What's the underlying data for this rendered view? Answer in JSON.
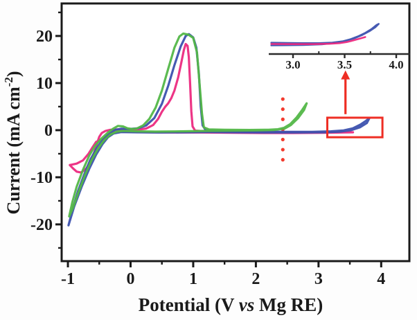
{
  "figure": {
    "background": "#fdfdfd",
    "accent_red": "#ee2e24"
  },
  "chart_data": {
    "type": "line",
    "title": "",
    "xlabel": "Potential (V vs Mg RE)",
    "xlabel_parts": [
      {
        "text": "Potential (V ",
        "italic": false
      },
      {
        "text": "vs",
        "italic": true
      },
      {
        "text": " Mg RE)",
        "italic": false
      }
    ],
    "ylabel": "Current (mA cm-2)",
    "ylabel_parts": {
      "main": "Current (mA cm",
      "sup": "-2",
      "close": ")"
    },
    "xlim": [
      -1.1,
      4.45
    ],
    "ylim": [
      -27.8,
      26.9
    ],
    "grid": false,
    "legend": "none",
    "x_ticks": [
      -1,
      0,
      1,
      2,
      3,
      4
    ],
    "x_tick_labels": [
      "-1",
      "0",
      "1",
      "2",
      "3",
      "4"
    ],
    "x_minor_ticks": [
      -0.5,
      0.5,
      1.5,
      2.5,
      3.5
    ],
    "y_ticks": [
      20,
      10,
      0,
      -10,
      -20
    ],
    "y_tick_labels": [
      "20",
      "10",
      "0",
      "-10",
      "-20"
    ],
    "y_minor_ticks": [
      25,
      15,
      5,
      -5,
      -15,
      -25
    ],
    "series": [
      {
        "name": "magenta-cv",
        "color": "#ec2a80",
        "points": [
          [
            -0.97,
            -7.4
          ],
          [
            -0.92,
            -8.1
          ],
          [
            -0.86,
            -8.8
          ],
          [
            -0.79,
            -9.0
          ],
          [
            -0.71,
            -8.2
          ],
          [
            -0.65,
            -6.9
          ],
          [
            -0.6,
            -5.5
          ],
          [
            -0.56,
            -4.0
          ],
          [
            -0.53,
            -2.6
          ],
          [
            -0.5,
            -1.4
          ],
          [
            -0.46,
            -0.6
          ],
          [
            -0.4,
            -0.15
          ],
          [
            -0.32,
            0.1
          ],
          [
            -0.2,
            0.15
          ],
          [
            -0.05,
            0.1
          ],
          [
            0.1,
            0.1
          ],
          [
            0.25,
            0.35
          ],
          [
            0.36,
            1.1
          ],
          [
            0.44,
            2.4
          ],
          [
            0.5,
            3.9
          ],
          [
            0.55,
            4.9
          ],
          [
            0.6,
            5.7
          ],
          [
            0.65,
            6.8
          ],
          [
            0.7,
            8.4
          ],
          [
            0.76,
            11.2
          ],
          [
            0.81,
            14.4
          ],
          [
            0.85,
            17.0
          ],
          [
            0.88,
            18.3
          ],
          [
            0.91,
            17.9
          ],
          [
            0.93,
            15.5
          ],
          [
            0.95,
            10.0
          ],
          [
            0.97,
            4.0
          ],
          [
            0.99,
            0.8
          ],
          [
            1.03,
            -0.1
          ],
          [
            1.2,
            -0.25
          ],
          [
            1.6,
            -0.35
          ],
          [
            2.1,
            -0.45
          ],
          [
            2.6,
            -0.5
          ],
          [
            3.1,
            -0.5
          ],
          [
            3.55,
            -0.45
          ],
          [
            3.1,
            -0.55
          ],
          [
            2.6,
            -0.6
          ],
          [
            2.1,
            -0.6
          ],
          [
            1.6,
            -0.55
          ],
          [
            1.15,
            -0.5
          ],
          [
            0.7,
            -0.5
          ],
          [
            0.3,
            -0.45
          ],
          [
            0.0,
            -0.4
          ],
          [
            -0.2,
            -0.35
          ],
          [
            -0.3,
            -0.5
          ],
          [
            -0.36,
            -0.9
          ],
          [
            -0.41,
            -1.6
          ],
          [
            -0.45,
            -2.0
          ],
          [
            -0.5,
            -2.2
          ],
          [
            -0.55,
            -2.5
          ],
          [
            -0.6,
            -3.5
          ],
          [
            -0.67,
            -5.0
          ],
          [
            -0.76,
            -6.4
          ],
          [
            -0.86,
            -7.1
          ],
          [
            -0.97,
            -7.4
          ]
        ]
      },
      {
        "name": "blue-cv",
        "color": "#3c51ae",
        "points": [
          [
            -0.99,
            -20.2
          ],
          [
            -0.92,
            -16.6
          ],
          [
            -0.84,
            -13.0
          ],
          [
            -0.74,
            -9.4
          ],
          [
            -0.64,
            -6.2
          ],
          [
            -0.54,
            -3.8
          ],
          [
            -0.45,
            -2.1
          ],
          [
            -0.37,
            -1.0
          ],
          [
            -0.3,
            -0.3
          ],
          [
            -0.24,
            0.1
          ],
          [
            -0.15,
            0.3
          ],
          [
            -0.02,
            0.25
          ],
          [
            0.12,
            0.4
          ],
          [
            0.25,
            1.0
          ],
          [
            0.38,
            2.6
          ],
          [
            0.5,
            5.6
          ],
          [
            0.6,
            9.4
          ],
          [
            0.7,
            13.8
          ],
          [
            0.8,
            17.8
          ],
          [
            0.88,
            20.0
          ],
          [
            0.93,
            20.4
          ],
          [
            1.0,
            19.7
          ],
          [
            1.05,
            17.5
          ],
          [
            1.09,
            12.0
          ],
          [
            1.12,
            5.0
          ],
          [
            1.15,
            1.0
          ],
          [
            1.2,
            0.0
          ],
          [
            1.5,
            -0.2
          ],
          [
            2.0,
            -0.3
          ],
          [
            2.5,
            -0.35
          ],
          [
            2.9,
            -0.35
          ],
          [
            3.2,
            -0.25
          ],
          [
            3.4,
            -0.05
          ],
          [
            3.55,
            0.4
          ],
          [
            3.67,
            1.2
          ],
          [
            3.76,
            2.0
          ],
          [
            3.81,
            2.5
          ],
          [
            3.77,
            1.5
          ],
          [
            3.66,
            0.6
          ],
          [
            3.52,
            0.0
          ],
          [
            3.35,
            -0.3
          ],
          [
            3.1,
            -0.45
          ],
          [
            2.7,
            -0.5
          ],
          [
            2.2,
            -0.5
          ],
          [
            1.7,
            -0.45
          ],
          [
            1.25,
            -0.4
          ],
          [
            0.85,
            -0.45
          ],
          [
            0.45,
            -0.5
          ],
          [
            0.1,
            -0.45
          ],
          [
            -0.15,
            -0.4
          ],
          [
            -0.27,
            -0.7
          ],
          [
            -0.36,
            -1.5
          ],
          [
            -0.45,
            -3.0
          ],
          [
            -0.55,
            -5.2
          ],
          [
            -0.66,
            -8.2
          ],
          [
            -0.78,
            -12.0
          ],
          [
            -0.9,
            -16.2
          ],
          [
            -0.99,
            -20.2
          ]
        ]
      },
      {
        "name": "green-cv",
        "color": "#53b748",
        "points": [
          [
            -0.98,
            -18.3
          ],
          [
            -0.93,
            -15.3
          ],
          [
            -0.86,
            -12.0
          ],
          [
            -0.76,
            -8.4
          ],
          [
            -0.66,
            -5.4
          ],
          [
            -0.56,
            -3.2
          ],
          [
            -0.46,
            -1.7
          ],
          [
            -0.36,
            -0.5
          ],
          [
            -0.28,
            0.3
          ],
          [
            -0.2,
            0.9
          ],
          [
            -0.12,
            0.8
          ],
          [
            -0.05,
            0.4
          ],
          [
            0.02,
            0.25
          ],
          [
            0.1,
            0.35
          ],
          [
            0.2,
            1.0
          ],
          [
            0.3,
            2.4
          ],
          [
            0.4,
            4.8
          ],
          [
            0.5,
            8.4
          ],
          [
            0.6,
            13.0
          ],
          [
            0.7,
            17.5
          ],
          [
            0.78,
            19.9
          ],
          [
            0.84,
            20.5
          ],
          [
            0.92,
            20.3
          ],
          [
            1.0,
            19.6
          ],
          [
            1.06,
            16.5
          ],
          [
            1.1,
            10.0
          ],
          [
            1.14,
            3.5
          ],
          [
            1.17,
            0.6
          ],
          [
            1.25,
            0.15
          ],
          [
            1.5,
            0.1
          ],
          [
            1.9,
            0.05
          ],
          [
            2.2,
            0.1
          ],
          [
            2.35,
            0.2
          ],
          [
            2.45,
            0.5
          ],
          [
            2.55,
            1.3
          ],
          [
            2.65,
            2.7
          ],
          [
            2.74,
            4.3
          ],
          [
            2.81,
            5.7
          ],
          [
            2.77,
            4.3
          ],
          [
            2.67,
            2.5
          ],
          [
            2.56,
            1.1
          ],
          [
            2.46,
            0.35
          ],
          [
            2.3,
            0.05
          ],
          [
            2.0,
            -0.05
          ],
          [
            1.6,
            -0.1
          ],
          [
            1.2,
            -0.15
          ],
          [
            0.8,
            -0.25
          ],
          [
            0.4,
            -0.3
          ],
          [
            0.1,
            -0.25
          ],
          [
            -0.12,
            -0.15
          ],
          [
            -0.22,
            -0.3
          ],
          [
            -0.32,
            -0.9
          ],
          [
            -0.42,
            -2.1
          ],
          [
            -0.52,
            -3.9
          ],
          [
            -0.62,
            -6.3
          ],
          [
            -0.72,
            -9.3
          ],
          [
            -0.82,
            -12.8
          ],
          [
            -0.92,
            -16.5
          ],
          [
            -0.98,
            -18.3
          ]
        ]
      }
    ],
    "annotations": {
      "vertical_dotted_line": {
        "x": 2.43,
        "y_from": -6.3,
        "y_to": 6.6,
        "color": "#f23b2e"
      },
      "highlight_box": {
        "x1": 3.14,
        "y1": -1.5,
        "x2": 4.02,
        "y2": 2.65,
        "color": "#ee2e24"
      },
      "arrow": {
        "x": 3.43,
        "y_from": 3.4,
        "y_to": 12.7,
        "color": "#ee2e24"
      }
    },
    "inset": {
      "xlim": [
        2.765,
        4.134
      ],
      "ylim_au": [
        -1.45,
        3.55
      ],
      "x_ticks": [
        3.0,
        3.5,
        4.0
      ],
      "x_tick_labels": [
        "3.0",
        "3.5",
        "4.0"
      ],
      "x_minor_ticks": [
        3.25,
        3.75
      ],
      "series": [
        {
          "name": "blue-cv-inset",
          "color": "#3c51ae",
          "points": [
            [
              2.79,
              0.18
            ],
            [
              2.95,
              0.15
            ],
            [
              3.1,
              0.12
            ],
            [
              3.25,
              0.12
            ],
            [
              3.38,
              0.2
            ],
            [
              3.48,
              0.38
            ],
            [
              3.56,
              0.7
            ],
            [
              3.63,
              1.1
            ],
            [
              3.7,
              1.6
            ],
            [
              3.76,
              2.15
            ],
            [
              3.81,
              2.75
            ],
            [
              3.83,
              2.9
            ],
            [
              3.8,
              2.45
            ],
            [
              3.74,
              1.85
            ],
            [
              3.67,
              1.3
            ],
            [
              3.59,
              0.8
            ],
            [
              3.5,
              0.42
            ],
            [
              3.4,
              0.15
            ],
            [
              3.28,
              -0.05
            ],
            [
              3.1,
              -0.15
            ],
            [
              2.9,
              -0.18
            ],
            [
              2.79,
              -0.2
            ]
          ]
        },
        {
          "name": "magenta-cv-inset",
          "color": "#ec2a80",
          "points": [
            [
              2.79,
              0.0
            ],
            [
              3.0,
              -0.02
            ],
            [
              3.2,
              -0.02
            ],
            [
              3.35,
              0.03
            ],
            [
              3.45,
              0.12
            ],
            [
              3.52,
              0.28
            ],
            [
              3.58,
              0.5
            ],
            [
              3.64,
              0.75
            ],
            [
              3.7,
              1.0
            ]
          ]
        }
      ]
    }
  }
}
